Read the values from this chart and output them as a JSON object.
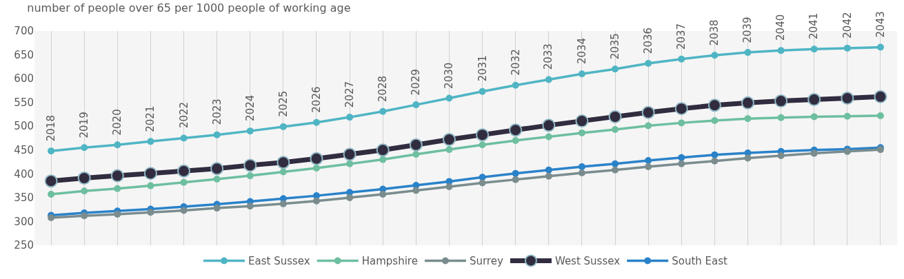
{
  "chart_data": {
    "type": "line",
    "title": "number of people over 65 per 1000 people of working age",
    "categories": [
      "2018",
      "2019",
      "2020",
      "2021",
      "2022",
      "2023",
      "2024",
      "2025",
      "2026",
      "2027",
      "2028",
      "2029",
      "2030",
      "2031",
      "2032",
      "2033",
      "2034",
      "2035",
      "2036",
      "2037",
      "2038",
      "2039",
      "2040",
      "2041",
      "2042",
      "2043"
    ],
    "series": [
      {
        "name": "East Sussex",
        "color": "#4fb5c4",
        "values": [
          448,
          455,
          461,
          468,
          475,
          482,
          490,
          499,
          508,
          519,
          531,
          545,
          559,
          573,
          586,
          598,
          610,
          620,
          632,
          641,
          649,
          655,
          659,
          662,
          664,
          666
        ]
      },
      {
        "name": "Hampshire",
        "color": "#6dbfa0",
        "values": [
          357,
          364,
          369,
          375,
          382,
          389,
          396,
          404,
          412,
          421,
          430,
          441,
          451,
          461,
          470,
          478,
          486,
          493,
          501,
          507,
          512,
          516,
          518,
          520,
          521,
          522
        ]
      },
      {
        "name": "Surrey",
        "color": "#7a8c8e",
        "values": [
          308,
          312,
          315,
          319,
          323,
          328,
          332,
          337,
          343,
          350,
          357,
          365,
          373,
          381,
          388,
          395,
          402,
          408,
          415,
          421,
          427,
          433,
          438,
          443,
          447,
          451
        ]
      },
      {
        "name": "West Sussex",
        "color": "#312c3f",
        "values": [
          385,
          391,
          396,
          401,
          406,
          411,
          418,
          424,
          432,
          441,
          450,
          461,
          472,
          482,
          492,
          502,
          511,
          520,
          529,
          537,
          544,
          549,
          553,
          556,
          559,
          562
        ]
      },
      {
        "name": "South East",
        "color": "#2a82c9",
        "values": [
          313,
          318,
          322,
          326,
          331,
          336,
          342,
          348,
          354,
          361,
          368,
          376,
          384,
          393,
          401,
          408,
          415,
          421,
          428,
          434,
          440,
          444,
          447,
          450,
          452,
          455
        ]
      }
    ],
    "ylim": [
      250,
      700
    ],
    "yticks": [
      250,
      300,
      350,
      400,
      450,
      500,
      550,
      600,
      650,
      700
    ],
    "grid": "x",
    "legend": "bottom",
    "marker": "circle",
    "line_style": "solid",
    "tick_labels": "y"
  }
}
